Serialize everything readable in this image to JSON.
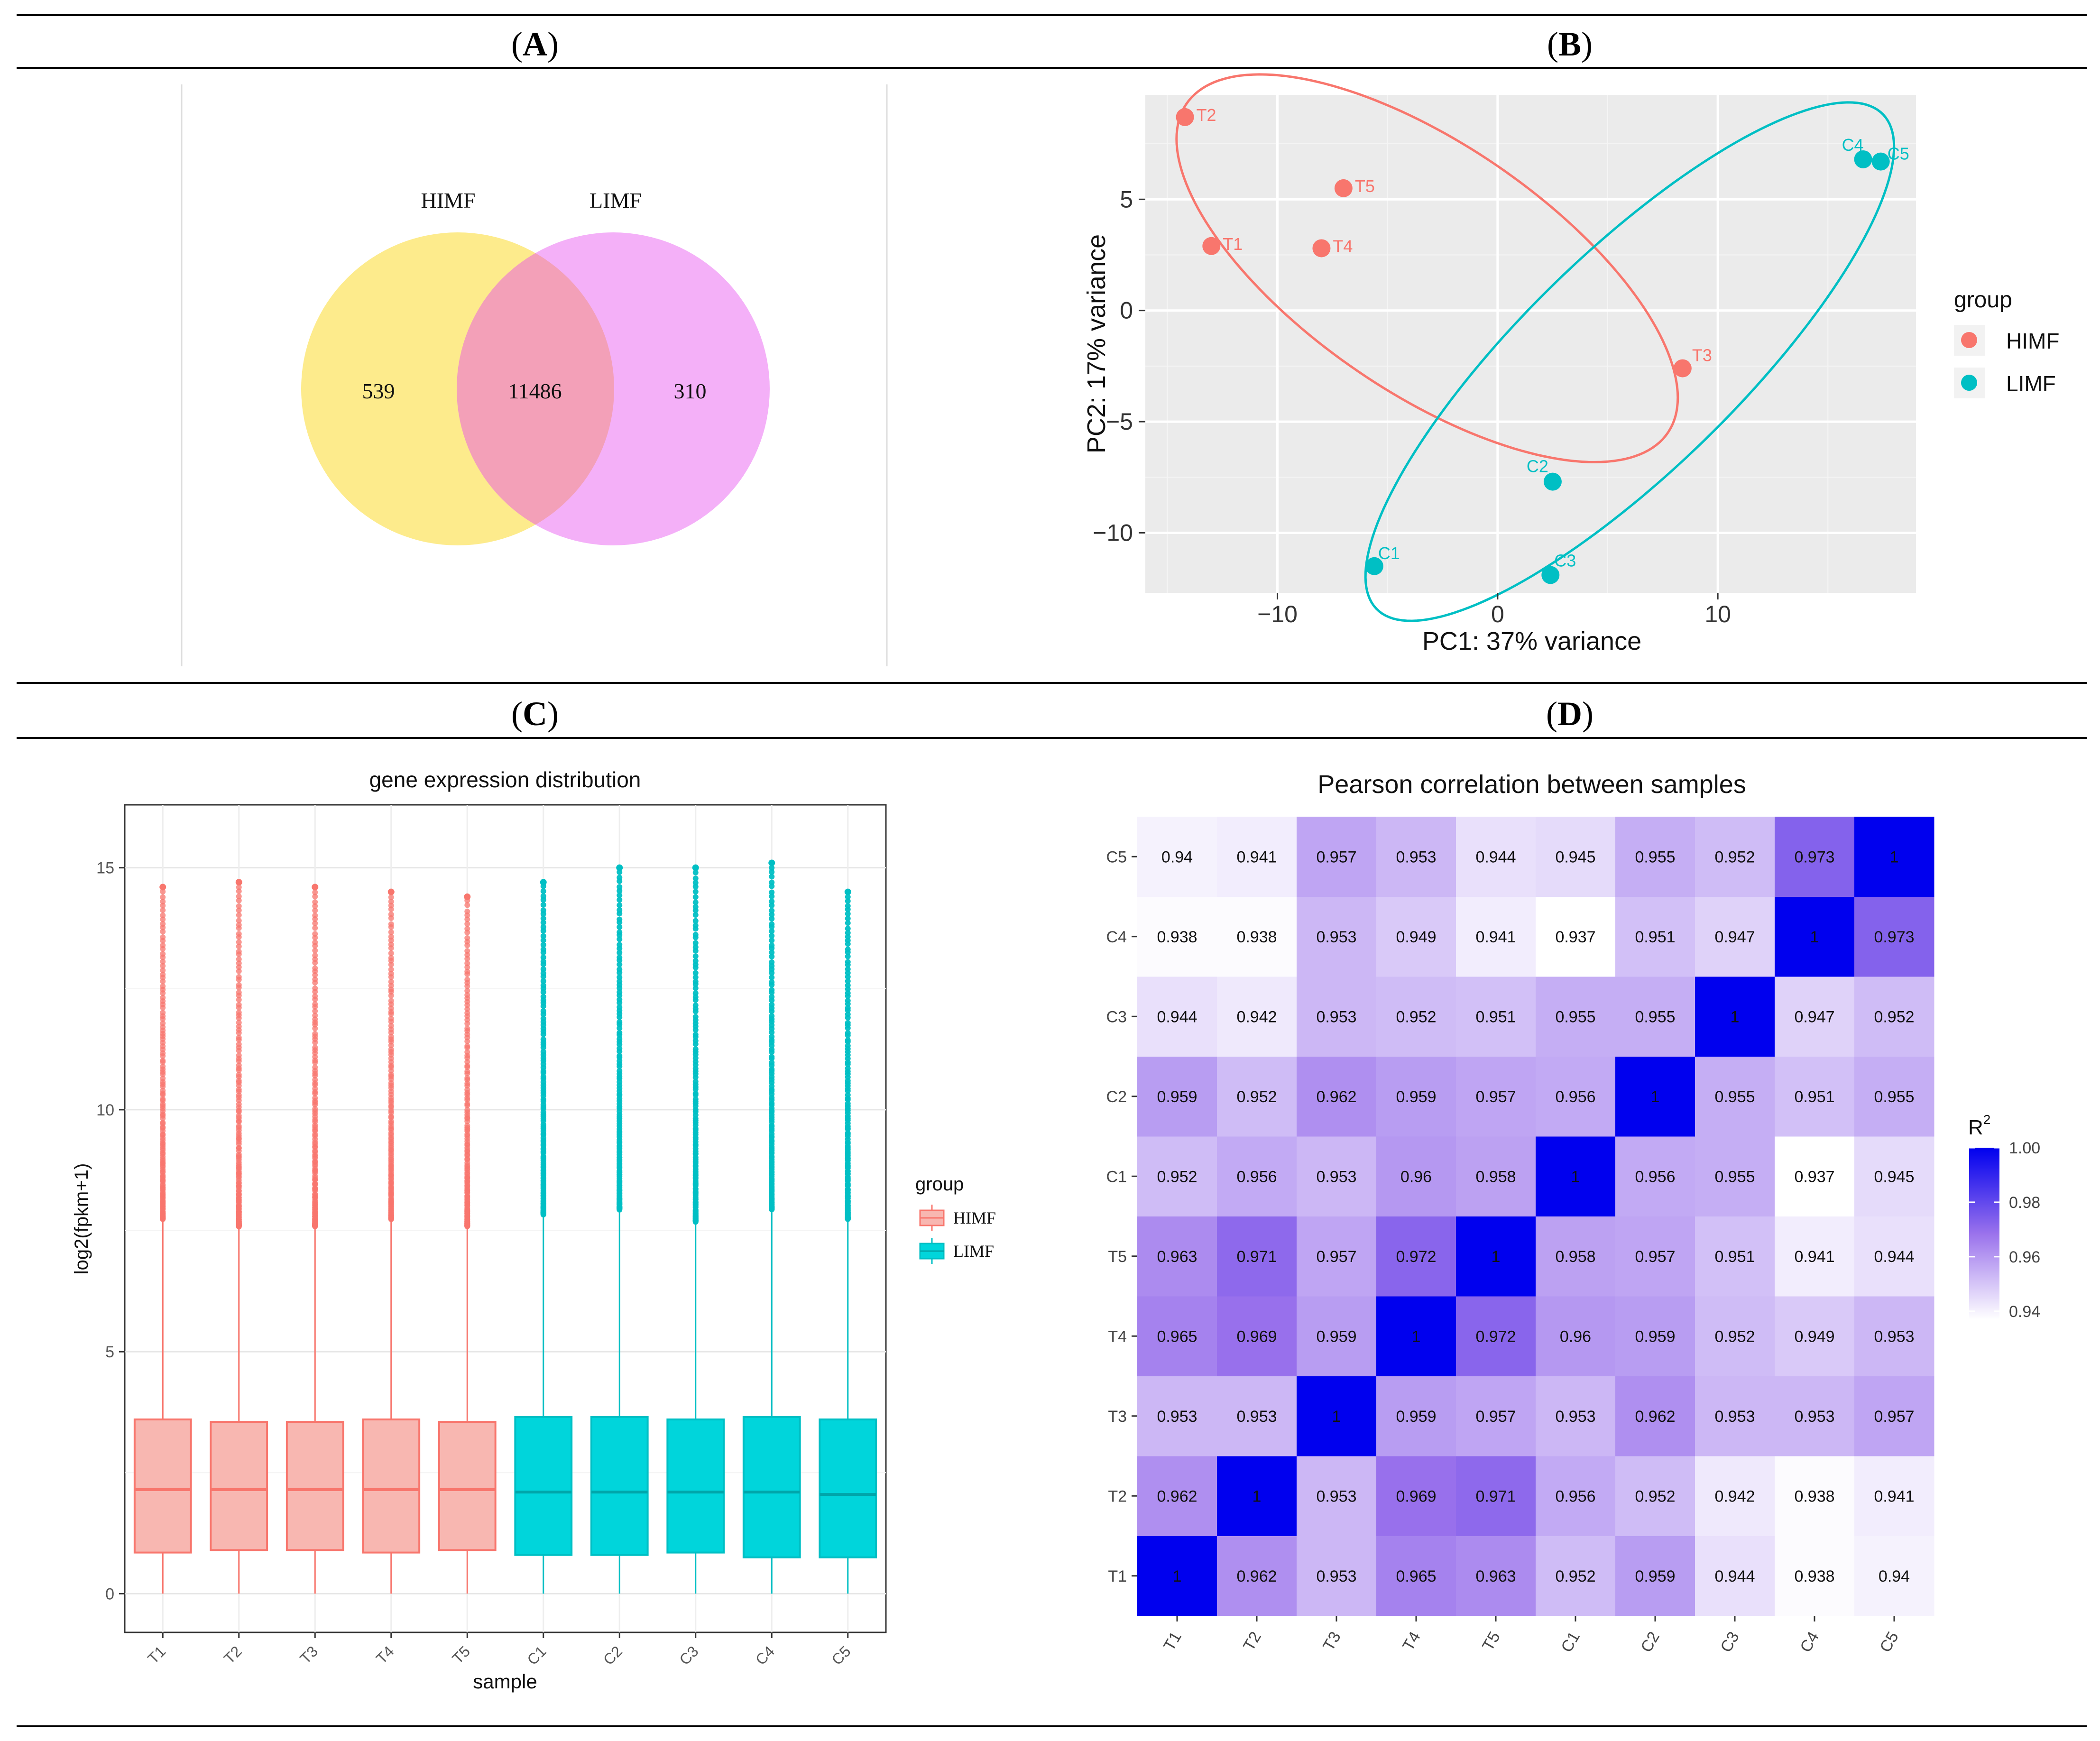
{
  "panels": {
    "a": "A",
    "b": "B",
    "c": "C",
    "d": "D"
  },
  "colors": {
    "himf": "#F8766D",
    "limf": "#00BFC4",
    "venn_left": "#FDEB8C",
    "venn_right": "#F4B0F8",
    "venn_overlap": "#F3A0B8",
    "heat_low": "#FFFFFF",
    "heat_high": "#0000EE",
    "panel_bg": "#EBEBEB"
  },
  "chart_data": [
    {
      "panel": "A",
      "type": "venn",
      "sets": [
        "HIMF",
        "LIMF"
      ],
      "values": {
        "HIMF_only": "539",
        "both": "11486",
        "LIMF_only": "310"
      }
    },
    {
      "panel": "B",
      "type": "scatter",
      "title": "",
      "xlabel": "PC1: 37% variance",
      "ylabel": "PC2: 17% variance",
      "xlim": [
        -16,
        19
      ],
      "ylim": [
        -12.7,
        9.7
      ],
      "xticks": [
        {
          "v": -10,
          "label": "−10"
        },
        {
          "v": 0,
          "label": "0"
        },
        {
          "v": 10,
          "label": "10"
        }
      ],
      "yticks": [
        {
          "v": -10,
          "label": "−10"
        },
        {
          "v": -5,
          "label": "−5"
        },
        {
          "v": 0,
          "label": "0"
        },
        {
          "v": 5,
          "label": "5"
        }
      ],
      "legend": {
        "title": "group",
        "position": "right",
        "entries": [
          "HIMF",
          "LIMF"
        ]
      },
      "points": [
        {
          "label": "T2",
          "x": -14.2,
          "y": 8.7,
          "group": "HIMF"
        },
        {
          "label": "T5",
          "x": -7.0,
          "y": 5.5,
          "group": "HIMF"
        },
        {
          "label": "T1",
          "x": -13.0,
          "y": 2.9,
          "group": "HIMF"
        },
        {
          "label": "T4",
          "x": -8.0,
          "y": 2.8,
          "group": "HIMF"
        },
        {
          "label": "T3",
          "x": 8.4,
          "y": -2.6,
          "group": "HIMF"
        },
        {
          "label": "C4",
          "x": 16.6,
          "y": 6.8,
          "group": "LIMF"
        },
        {
          "label": "C5",
          "x": 17.4,
          "y": 6.7,
          "group": "LIMF"
        },
        {
          "label": "C2",
          "x": 2.5,
          "y": -7.7,
          "group": "LIMF"
        },
        {
          "label": "C1",
          "x": -5.6,
          "y": -11.5,
          "group": "LIMF"
        },
        {
          "label": "C3",
          "x": 2.4,
          "y": -11.9,
          "group": "LIMF"
        }
      ],
      "ellipses": [
        {
          "group": "HIMF",
          "cx": -3.2,
          "cy": 1.9,
          "a": 13.2,
          "b": 5.6,
          "angle_deg": -34
        },
        {
          "group": "LIMF",
          "cx": 6.0,
          "cy": -2.3,
          "a": 16.0,
          "b": 4.9,
          "angle_deg": 44
        }
      ]
    },
    {
      "panel": "C",
      "type": "boxplot",
      "title": "gene expression distribution",
      "xlabel": "sample",
      "ylabel": "log2(fpkm+1)",
      "ylim": [
        -0.8,
        16.3
      ],
      "yticks": [
        0,
        5,
        10,
        15
      ],
      "legend": {
        "title": "group",
        "position": "right",
        "entries": [
          "HIMF",
          "LIMF"
        ]
      },
      "boxes": [
        {
          "sample": "T1",
          "group": "HIMF",
          "q1": 0.85,
          "median": 2.15,
          "q3": 3.6,
          "upper_whisker": 7.75,
          "max_outlier": 14.6
        },
        {
          "sample": "T2",
          "group": "HIMF",
          "q1": 0.9,
          "median": 2.15,
          "q3": 3.55,
          "upper_whisker": 7.6,
          "max_outlier": 14.7
        },
        {
          "sample": "T3",
          "group": "HIMF",
          "q1": 0.9,
          "median": 2.15,
          "q3": 3.55,
          "upper_whisker": 7.6,
          "max_outlier": 14.6
        },
        {
          "sample": "T4",
          "group": "HIMF",
          "q1": 0.85,
          "median": 2.15,
          "q3": 3.6,
          "upper_whisker": 7.75,
          "max_outlier": 14.5
        },
        {
          "sample": "T5",
          "group": "HIMF",
          "q1": 0.9,
          "median": 2.15,
          "q3": 3.55,
          "upper_whisker": 7.6,
          "max_outlier": 14.4
        },
        {
          "sample": "C1",
          "group": "LIMF",
          "q1": 0.8,
          "median": 2.1,
          "q3": 3.65,
          "upper_whisker": 7.85,
          "max_outlier": 14.7
        },
        {
          "sample": "C2",
          "group": "LIMF",
          "q1": 0.8,
          "median": 2.1,
          "q3": 3.65,
          "upper_whisker": 7.95,
          "max_outlier": 15.0
        },
        {
          "sample": "C3",
          "group": "LIMF",
          "q1": 0.85,
          "median": 2.1,
          "q3": 3.6,
          "upper_whisker": 7.7,
          "max_outlier": 15.0
        },
        {
          "sample": "C4",
          "group": "LIMF",
          "q1": 0.75,
          "median": 2.1,
          "q3": 3.65,
          "upper_whisker": 7.95,
          "max_outlier": 15.1
        },
        {
          "sample": "C5",
          "group": "LIMF",
          "q1": 0.75,
          "median": 2.05,
          "q3": 3.6,
          "upper_whisker": 7.75,
          "max_outlier": 14.5
        }
      ]
    },
    {
      "panel": "D",
      "type": "heatmap",
      "title": "Pearson correlation between samples",
      "samples": [
        "T1",
        "T2",
        "T3",
        "T4",
        "T5",
        "C1",
        "C2",
        "C3",
        "C4",
        "C5"
      ],
      "colorbar": {
        "title": "R",
        "superscript": "2",
        "min": 0.937,
        "max": 1.0,
        "ticks": [
          "1.00",
          "0.98",
          "0.96",
          "0.94"
        ],
        "tick_values": [
          1.0,
          0.98,
          0.96,
          0.94
        ]
      },
      "matrix": [
        [
          "1",
          "0.962",
          "0.953",
          "0.965",
          "0.963",
          "0.952",
          "0.959",
          "0.944",
          "0.938",
          "0.94"
        ],
        [
          "0.962",
          "1",
          "0.953",
          "0.969",
          "0.971",
          "0.956",
          "0.952",
          "0.942",
          "0.938",
          "0.941"
        ],
        [
          "0.953",
          "0.953",
          "1",
          "0.959",
          "0.957",
          "0.953",
          "0.962",
          "0.953",
          "0.953",
          "0.957"
        ],
        [
          "0.965",
          "0.969",
          "0.959",
          "1",
          "0.972",
          "0.96",
          "0.959",
          "0.952",
          "0.949",
          "0.953"
        ],
        [
          "0.963",
          "0.971",
          "0.957",
          "0.972",
          "1",
          "0.958",
          "0.957",
          "0.951",
          "0.941",
          "0.944"
        ],
        [
          "0.952",
          "0.956",
          "0.953",
          "0.96",
          "0.958",
          "1",
          "0.956",
          "0.955",
          "0.937",
          "0.945"
        ],
        [
          "0.959",
          "0.952",
          "0.962",
          "0.959",
          "0.957",
          "0.956",
          "1",
          "0.955",
          "0.951",
          "0.955"
        ],
        [
          "0.944",
          "0.942",
          "0.953",
          "0.952",
          "0.951",
          "0.955",
          "0.955",
          "1",
          "0.947",
          "0.952"
        ],
        [
          "0.938",
          "0.938",
          "0.953",
          "0.949",
          "0.941",
          "0.937",
          "0.951",
          "0.947",
          "1",
          "0.973"
        ],
        [
          "0.94",
          "0.941",
          "0.957",
          "0.953",
          "0.944",
          "0.945",
          "0.955",
          "0.952",
          "0.973",
          "1"
        ]
      ]
    }
  ]
}
